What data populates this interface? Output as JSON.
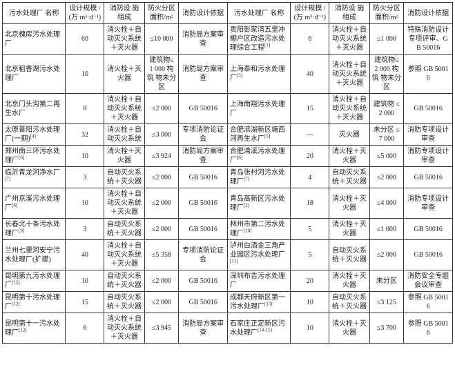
{
  "columns": [
    {
      "key": "name",
      "label": "污水处理厂\n名称",
      "align": "left"
    },
    {
      "key": "scale",
      "label": "设计规模\n/(万 m³·d⁻¹)",
      "align": "center"
    },
    {
      "key": "facility",
      "label": "消防设\n施组成",
      "align": "center"
    },
    {
      "key": "area",
      "label": "防火分区\n面积/m²",
      "align": "center"
    },
    {
      "key": "basis",
      "label": "消防设计依据",
      "align": "center"
    }
  ],
  "rows_left": [
    {
      "name": "北京槐房污水处理厂",
      "scale": "60",
      "facility": "消火栓＋自动灭火系统＋灭火器",
      "area": "≤10 000",
      "basis": "消防局方案审查"
    },
    {
      "name": "北京稻香湖污水处理厂",
      "scale": "16",
      "facility": "消火栓＋灭火器",
      "area": "建筑物≤\n1 000 构筑\n物未分区",
      "basis": "消防局方案审查"
    },
    {
      "name": "北京门头沟第二再生水厂",
      "scale": "8",
      "facility": "消火栓＋自动灭火系统＋灭火器",
      "area": "≤2 000",
      "basis": "GB 50016"
    },
    {
      "name": "太原晋阳污水处理厂(一期)",
      "sup": "[4]",
      "scale": "32",
      "facility": "消火栓＋自动灭火系统",
      "area": "≤3 000",
      "basis": "专项消防论证会"
    },
    {
      "name": "郑州南三环污水处理厂",
      "sup": "[6]",
      "scale": "10",
      "facility": "消火栓＋灭火器",
      "area": "≤3 924",
      "basis": "消防局方案审查"
    },
    {
      "name": "临沂青龙河净水厂",
      "sup": "[7]",
      "scale": "3",
      "facility": "自动灭火系统＋灭火器",
      "area": "≤2 000",
      "basis": "GB 50016"
    },
    {
      "name": "广州京溪污水处理厂",
      "sup": "[8]",
      "scale": "10",
      "facility": "消火栓＋自动灭火系统＋灭火器",
      "area": "≤2 000",
      "basis": "GB 50016"
    },
    {
      "name": "长春北十条污水处理厂",
      "sup": "[9]",
      "scale": "3",
      "facility": "自动灭火系统＋灭火器",
      "area": "≤2 000",
      "basis": "GB 50016"
    },
    {
      "name": "兰州七里河安宁污水处理厂(扩建)",
      "scale": "40",
      "facility": "消火栓＋自动灭火系统＋灭火器",
      "area": "≤5 358",
      "basis": "专项消防论证会"
    },
    {
      "name": "昆明第九污水处理厂",
      "sup": "[12]",
      "scale": "10",
      "facility": "自动灭火系统＋灭火器",
      "area": "≤2 000",
      "basis": "GB 50016"
    },
    {
      "name": "昆明第十污水处理厂",
      "sup": "[12]",
      "scale": "15",
      "facility": "自动灭火系统＋灭火器",
      "area": "≤2 000",
      "basis": "GB 50016"
    },
    {
      "name": "昆明第十一污水处理厂",
      "sup": "[12]",
      "scale": "6",
      "facility": "消火栓＋自动灭火系统＋灭火器",
      "area": "≤3 945",
      "basis": "消防局方案审查"
    }
  ],
  "rows_right": [
    {
      "name": "贵阳彭家湾五里冲棚户区改造污水处理综合工程",
      "sup": "[1]",
      "scale": "6",
      "facility": "消火栓＋自动灭火系统＋灭火器",
      "area": "≤1 000",
      "basis": "特殊消防设计专项评审、GB 50016"
    },
    {
      "name": "上海泰和污水处理厂",
      "sup": "[3]",
      "scale": "40",
      "facility": "消火栓＋自动灭火系统＋灭火器",
      "area": "建筑物≤\n2 000 构筑\n物未分区",
      "basis": "参照 GB 50016"
    },
    {
      "name": "上海南翔污水处理厂",
      "scale": "15",
      "facility": "消火栓＋自动灭火系统＋灭火器",
      "area": "建筑物\n≤2 000",
      "basis": "GB 50016"
    },
    {
      "name": "合肥滨湖新区塘西河再生水厂",
      "sup": "[5]",
      "scale": "—",
      "facility": "灭火器",
      "area": "未分区\n≤7 000",
      "basis": "消防专项设计审查"
    },
    {
      "name": "合肥清溪污水处理厂",
      "sup": "[6]",
      "scale": "20",
      "facility": "消火栓＋灭火器",
      "area": "≤5 000",
      "basis": "消防专项设计审查"
    },
    {
      "name": "青岛张村河污水处理厂",
      "sup": "[7]",
      "scale": "4",
      "facility": "自动灭火系统＋灭火器",
      "area": "≤2 000",
      "basis": "GB 50016"
    },
    {
      "name": "青岛高新区污水处理厂",
      "sup": "[2]",
      "scale": "18",
      "facility": "消火栓＋灭火器",
      "area": "≤4 000",
      "basis": "消防专项设计审查"
    },
    {
      "name": "林州市第二污水处理厂",
      "sup": "[10]",
      "scale": "5",
      "facility": "消火栓＋灭火器",
      "area": "≤1 000",
      "basis": "GB 50016"
    },
    {
      "name": "泸州白酒金三角产业园区污水处理厂",
      "sup": "[11]",
      "scale": "5",
      "facility": "自动灭火系统＋灭火器",
      "area": "≤2 000",
      "basis": "GB 50016"
    },
    {
      "name": "深圳布吉污水处理厂",
      "scale": "20",
      "facility": "消火栓＋灭火器",
      "area": "未分区",
      "basis": "消防安全专题会议审查"
    },
    {
      "name": "成都天府新区第一污水处理厂",
      "sup": "[13]",
      "scale": "10",
      "facility": "自动灭火系统＋灭火器",
      "area": "≤3 125",
      "basis": "参照 GB 50016"
    },
    {
      "name": "石家庄正定新区污水处理厂",
      "sup": "[14-15]",
      "scale": "10",
      "facility": "消火栓＋灭火器",
      "area": "≤3 700",
      "basis": "参照 GB 50016"
    }
  ]
}
